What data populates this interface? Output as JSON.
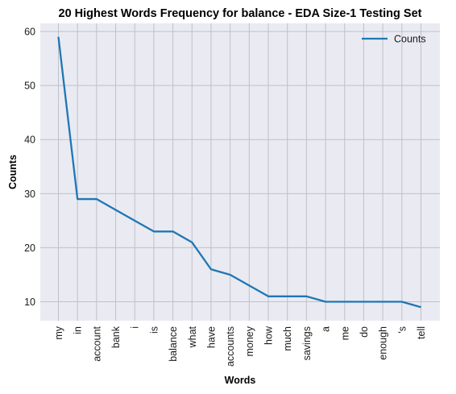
{
  "chart_data": {
    "type": "line",
    "title": "20 Highest Words Frequency for balance - EDA Size-1 Testing Set",
    "xlabel": "Words",
    "ylabel": "Counts",
    "categories": [
      "my",
      "in",
      "account",
      "bank",
      "i",
      "is",
      "balance",
      "what",
      "have",
      "accounts",
      "money",
      "how",
      "much",
      "savings",
      "a",
      "me",
      "do",
      "enough",
      "'s",
      "tell"
    ],
    "series": [
      {
        "name": "Counts",
        "values": [
          59,
          29,
          29,
          27,
          25,
          23,
          23,
          21,
          16,
          15,
          13,
          11,
          11,
          11,
          10,
          10,
          10,
          10,
          10,
          9
        ]
      }
    ],
    "yticks": [
      10,
      20,
      30,
      40,
      50,
      60
    ],
    "ylim": [
      6.5,
      61.5
    ],
    "grid": true,
    "legend_position": "top-right",
    "colors": {
      "line": "#1f77b4",
      "plot_background": "#eaeaf2",
      "grid": "#c0c0c8"
    }
  }
}
